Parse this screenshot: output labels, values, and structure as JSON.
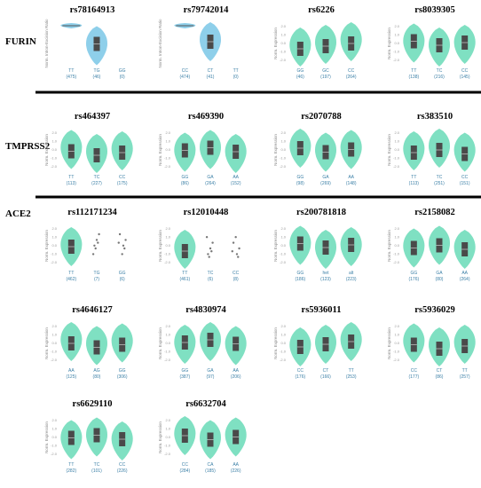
{
  "sections": [
    {
      "label": "FURIN",
      "panels": [
        {
          "title": "rs78164913",
          "ylabel": "Norm. Intron-Excision Ratio",
          "color": "#8ecfea",
          "yticks": [],
          "groups": [
            {
              "label": "TT",
              "count": "(475)"
            },
            {
              "label": "TG",
              "count": "(46)"
            },
            {
              "label": "GG",
              "count": "(0)"
            }
          ]
        },
        {
          "title": "rs79742014",
          "ylabel": "Norm. Intron-Excision Ratio",
          "color": "#8ecfea",
          "yticks": [],
          "groups": [
            {
              "label": "CC",
              "count": "(474)"
            },
            {
              "label": "CT",
              "count": "(41)"
            },
            {
              "label": "TT",
              "count": "(0)"
            }
          ]
        },
        {
          "title": "rs6226",
          "ylabel": "Norm. Expression",
          "color": "#7fe0c2",
          "yticks": [
            "2.0",
            "1.0",
            "0.0",
            "-1.0",
            "-2.0"
          ],
          "groups": [
            {
              "label": "GG",
              "count": "(46)"
            },
            {
              "label": "GC",
              "count": "(197)"
            },
            {
              "label": "CC",
              "count": "(264)"
            }
          ]
        },
        {
          "title": "rs8039305",
          "ylabel": "Norm. Expression",
          "color": "#7fe0c2",
          "yticks": [
            "2.0",
            "1.0",
            "0.0",
            "-1.0",
            "-2.0"
          ],
          "groups": [
            {
              "label": "TT",
              "count": "(138)"
            },
            {
              "label": "TC",
              "count": "(216)"
            },
            {
              "label": "CC",
              "count": "(145)"
            }
          ]
        }
      ]
    },
    {
      "label": "TMPRSS2",
      "panels": [
        {
          "title": "rs464397",
          "ylabel": "Norm. Expression",
          "color": "#7fe0c2",
          "yticks": [
            "2.0",
            "1.0",
            "0.0",
            "-1.0",
            "-2.0"
          ],
          "groups": [
            {
              "label": "TT",
              "count": "(113)"
            },
            {
              "label": "TC",
              "count": "(227)"
            },
            {
              "label": "CC",
              "count": "(175)"
            }
          ]
        },
        {
          "title": "rs469390",
          "ylabel": "Norm. Expression",
          "color": "#7fe0c2",
          "yticks": [
            "2.0",
            "1.0",
            "0.0",
            "-1.0",
            "-2.0"
          ],
          "groups": [
            {
              "label": "GG",
              "count": "(86)"
            },
            {
              "label": "GA",
              "count": "(264)"
            },
            {
              "label": "AA",
              "count": "(152)"
            }
          ]
        },
        {
          "title": "rs2070788",
          "ylabel": "Norm. Expression",
          "color": "#7fe0c2",
          "yticks": [
            "2.0",
            "1.0",
            "0.0",
            "-1.0",
            "-2.0"
          ],
          "groups": [
            {
              "label": "GG",
              "count": "(98)"
            },
            {
              "label": "GA",
              "count": "(269)"
            },
            {
              "label": "AA",
              "count": "(148)"
            }
          ]
        },
        {
          "title": "rs383510",
          "ylabel": "Norm. Expression",
          "color": "#7fe0c2",
          "yticks": [
            "2.0",
            "1.0",
            "0.0",
            "-1.0",
            "-2.0"
          ],
          "groups": [
            {
              "label": "TT",
              "count": "(113)"
            },
            {
              "label": "TC",
              "count": "(251)"
            },
            {
              "label": "CC",
              "count": "(151)"
            }
          ]
        }
      ]
    },
    {
      "label": "ACE2",
      "panels": [
        {
          "title": "rs112171234",
          "ylabel": "Norm. Expression",
          "color": "#7fe0c2",
          "yticks": [
            "2.0",
            "1.0",
            "0.0",
            "-1.0",
            "-2.0"
          ],
          "groups": [
            {
              "label": "TT",
              "count": "(462)"
            },
            {
              "label": "TG",
              "count": "(7)"
            },
            {
              "label": "GG",
              "count": "(6)"
            }
          ]
        },
        {
          "title": "rs12010448",
          "ylabel": "Norm. Expression",
          "color": "#7fe0c2",
          "yticks": [
            "2.0",
            "1.0",
            "0.0",
            "-1.0",
            "-2.0"
          ],
          "groups": [
            {
              "label": "TT",
              "count": "(461)"
            },
            {
              "label": "TC",
              "count": "(6)"
            },
            {
              "label": "CC",
              "count": "(8)"
            }
          ]
        },
        {
          "title": "rs200781818",
          "ylabel": "Norm. Expression",
          "color": "#7fe0c2",
          "yticks": [
            "2.0",
            "1.0",
            "0.0",
            "-1.0",
            "-2.0"
          ],
          "groups": [
            {
              "label": "GG",
              "count": "(186)"
            },
            {
              "label": "het",
              "count": "(123)"
            },
            {
              "label": "alt",
              "count": "(223)"
            }
          ]
        },
        {
          "title": "rs2158082",
          "ylabel": "Norm. Expression",
          "color": "#7fe0c2",
          "yticks": [
            "2.0",
            "1.0",
            "0.0",
            "-1.0",
            "-2.0"
          ],
          "groups": [
            {
              "label": "GG",
              "count": "(176)"
            },
            {
              "label": "GA",
              "count": "(80)"
            },
            {
              "label": "AA",
              "count": "(264)"
            }
          ]
        },
        {
          "title": "rs4646127",
          "ylabel": "Norm. Expression",
          "color": "#7fe0c2",
          "yticks": [
            "2.0",
            "1.0",
            "0.0",
            "-1.0",
            "-2.0"
          ],
          "groups": [
            {
              "label": "AA",
              "count": "(125)"
            },
            {
              "label": "AG",
              "count": "(80)"
            },
            {
              "label": "GG",
              "count": "(306)"
            }
          ]
        },
        {
          "title": "rs4830974",
          "ylabel": "Norm. Expression",
          "color": "#7fe0c2",
          "yticks": [
            "2.0",
            "1.0",
            "0.0",
            "-1.0",
            "-2.0"
          ],
          "groups": [
            {
              "label": "GG",
              "count": "(387)"
            },
            {
              "label": "GA",
              "count": "(97)"
            },
            {
              "label": "AA",
              "count": "(206)"
            }
          ]
        },
        {
          "title": "rs5936011",
          "ylabel": "Norm. Expression",
          "color": "#7fe0c2",
          "yticks": [
            "2.0",
            "1.0",
            "0.0",
            "-1.0",
            "-2.0"
          ],
          "groups": [
            {
              "label": "CC",
              "count": "(176)"
            },
            {
              "label": "CT",
              "count": "(166)"
            },
            {
              "label": "TT",
              "count": "(253)"
            }
          ]
        },
        {
          "title": "rs5936029",
          "ylabel": "Norm. Expression",
          "color": "#7fe0c2",
          "yticks": [
            "2.0",
            "1.0",
            "0.0",
            "-1.0",
            "-2.0"
          ],
          "groups": [
            {
              "label": "CC",
              "count": "(177)"
            },
            {
              "label": "CT",
              "count": "(86)"
            },
            {
              "label": "TT",
              "count": "(257)"
            }
          ]
        },
        {
          "title": "rs6629110",
          "ylabel": "Norm. Expression",
          "color": "#7fe0c2",
          "yticks": [
            "2.0",
            "1.0",
            "0.0",
            "-1.0",
            "-2.0"
          ],
          "groups": [
            {
              "label": "TT",
              "count": "(282)"
            },
            {
              "label": "TC",
              "count": "(101)"
            },
            {
              "label": "CC",
              "count": "(226)"
            }
          ]
        },
        {
          "title": "rs6632704",
          "ylabel": "Norm. Expression",
          "color": "#7fe0c2",
          "yticks": [
            "2.0",
            "1.0",
            "0.0",
            "-1.0",
            "-2.0"
          ],
          "groups": [
            {
              "label": "CC",
              "count": "(284)"
            },
            {
              "label": "CA",
              "count": "(185)"
            },
            {
              "label": "AA",
              "count": "(226)"
            }
          ]
        }
      ]
    }
  ]
}
